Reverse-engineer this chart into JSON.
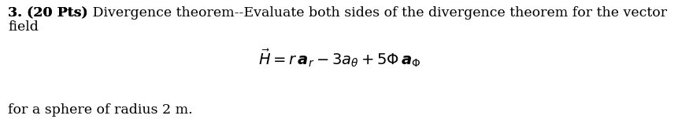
{
  "background_color": "#ffffff",
  "text_color": "#000000",
  "bold_part": "3. (20 Pts)",
  "text_line1_normal": " Divergence theorem--Evaluate both sides of the divergence theorem for the vector",
  "text_line2": "field",
  "formula": "$\\vec{H} = r\\,\\boldsymbol{a}_{r} - 3a_{\\theta} + 5\\Phi\\,\\boldsymbol{a}_{\\Phi}$",
  "footer": "for a sphere of radius 2 m.",
  "font_size_body": 12.5,
  "font_size_formula": 14
}
